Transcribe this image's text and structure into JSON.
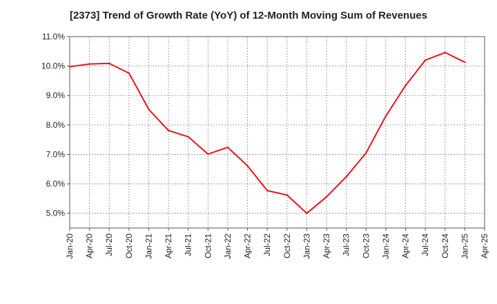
{
  "chart_data": {
    "type": "line",
    "title": "[2373]  Trend of Growth Rate (YoY) of 12-Month Moving Sum of Revenues",
    "xlabel": "",
    "ylabel": "",
    "x": [
      "Jan-20",
      "Apr-20",
      "Jul-20",
      "Oct-20",
      "Jan-21",
      "Apr-21",
      "Jul-21",
      "Oct-21",
      "Jan-22",
      "Apr-22",
      "Jul-22",
      "Oct-22",
      "Jan-23",
      "Apr-23",
      "Jul-23",
      "Oct-23",
      "Jan-24",
      "Apr-24",
      "Jul-24",
      "Oct-24",
      "Jan-25"
    ],
    "x_ticks": [
      "Jan-20",
      "Apr-20",
      "Jul-20",
      "Oct-20",
      "Jan-21",
      "Apr-21",
      "Jul-21",
      "Oct-21",
      "Jan-22",
      "Apr-22",
      "Jul-22",
      "Oct-22",
      "Jan-23",
      "Apr-23",
      "Jul-23",
      "Oct-23",
      "Jan-24",
      "Apr-24",
      "Jul-24",
      "Oct-24",
      "Jan-25",
      "Apr-25"
    ],
    "series": [
      {
        "values": [
          9.98,
          10.07,
          10.09,
          9.76,
          8.53,
          7.81,
          7.6,
          7.01,
          7.24,
          6.61,
          5.77,
          5.62,
          5.0,
          5.56,
          6.24,
          7.05,
          8.3,
          9.34,
          10.2,
          10.46,
          10.13
        ],
        "color": "#e8141b"
      }
    ],
    "ylim": [
      4.5,
      11.0
    ],
    "y_ticks": [
      "5.0%",
      "6.0%",
      "7.0%",
      "8.0%",
      "9.0%",
      "10.0%",
      "11.0%"
    ],
    "y_tick_values": [
      5,
      6,
      7,
      8,
      9,
      10,
      11
    ],
    "grid": true
  }
}
